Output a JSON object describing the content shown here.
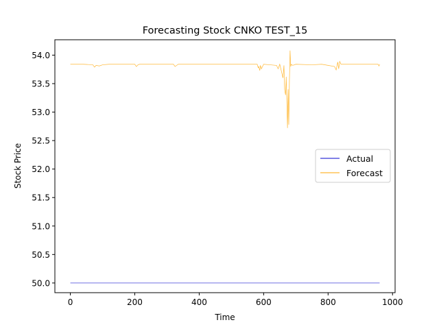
{
  "chart_data": {
    "type": "line",
    "title": "Forecasting Stock CNKO TEST_15",
    "xlabel": "Time",
    "ylabel": "Stock Price",
    "xlim": [
      -48,
      1008
    ],
    "ylim": [
      49.83,
      54.27
    ],
    "xticks": [
      0,
      200,
      400,
      600,
      800,
      1000
    ],
    "yticks": [
      50.0,
      50.5,
      51.0,
      51.5,
      52.0,
      52.5,
      53.0,
      53.5,
      54.0
    ],
    "legend_position": "center-right",
    "grid": false,
    "series": [
      {
        "name": "Actual",
        "color": "#0000cc",
        "x": [
          0,
          960
        ],
        "y": [
          50.0,
          50.0
        ]
      },
      {
        "name": "Forecast",
        "color": "#ffa500",
        "x": [
          0,
          40,
          70,
          75,
          80,
          90,
          100,
          120,
          200,
          205,
          210,
          215,
          320,
          325,
          330,
          335,
          580,
          583,
          585,
          588,
          590,
          593,
          600,
          620,
          640,
          645,
          650,
          655,
          660,
          663,
          665,
          668,
          670,
          672,
          674,
          676,
          678,
          680,
          682,
          684,
          686,
          690,
          700,
          750,
          780,
          800,
          820,
          825,
          830,
          833,
          836,
          840,
          900,
          955,
          958,
          960
        ],
        "y": [
          53.84,
          53.84,
          53.83,
          53.79,
          53.82,
          53.81,
          53.83,
          53.84,
          53.84,
          53.8,
          53.83,
          53.84,
          53.84,
          53.8,
          53.82,
          53.84,
          53.84,
          53.78,
          53.8,
          53.73,
          53.82,
          53.76,
          53.84,
          53.83,
          53.82,
          53.76,
          53.84,
          53.72,
          53.6,
          53.82,
          53.4,
          53.3,
          53.62,
          53.18,
          52.72,
          53.4,
          52.78,
          53.55,
          54.08,
          53.8,
          53.84,
          53.82,
          53.84,
          53.83,
          53.84,
          53.82,
          53.8,
          53.74,
          53.88,
          53.76,
          53.89,
          53.84,
          53.84,
          53.84,
          53.81,
          53.84
        ]
      }
    ]
  }
}
